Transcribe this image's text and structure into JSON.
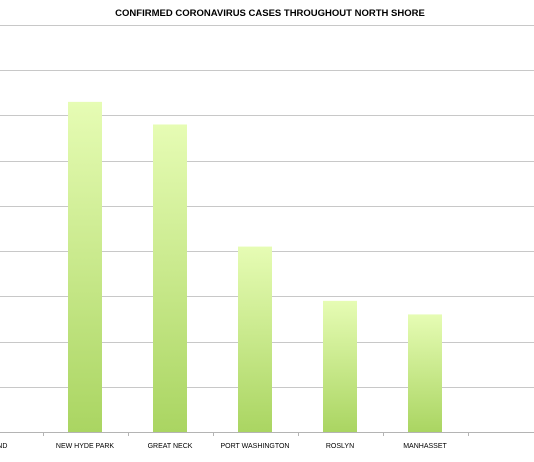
{
  "chart_data": {
    "type": "bar",
    "title": "CONFIRMED CORONAVIRUS CASES THROUGHOUT NORTH SHORE",
    "categories": [
      "AND",
      "NEW HYDE PARK",
      "GREAT NECK",
      "PORT WASHINGTON",
      "ROSLYN",
      "MANHASSET"
    ],
    "values": [
      null,
      7.3,
      6.8,
      4.1,
      2.9,
      2.6
    ],
    "xlabel": "",
    "ylabel": "",
    "ylim": [
      0,
      9
    ],
    "grid": true,
    "legend": "none",
    "bar_gradient": {
      "top": "#e6fcb4",
      "bottom": "#aad562"
    }
  }
}
